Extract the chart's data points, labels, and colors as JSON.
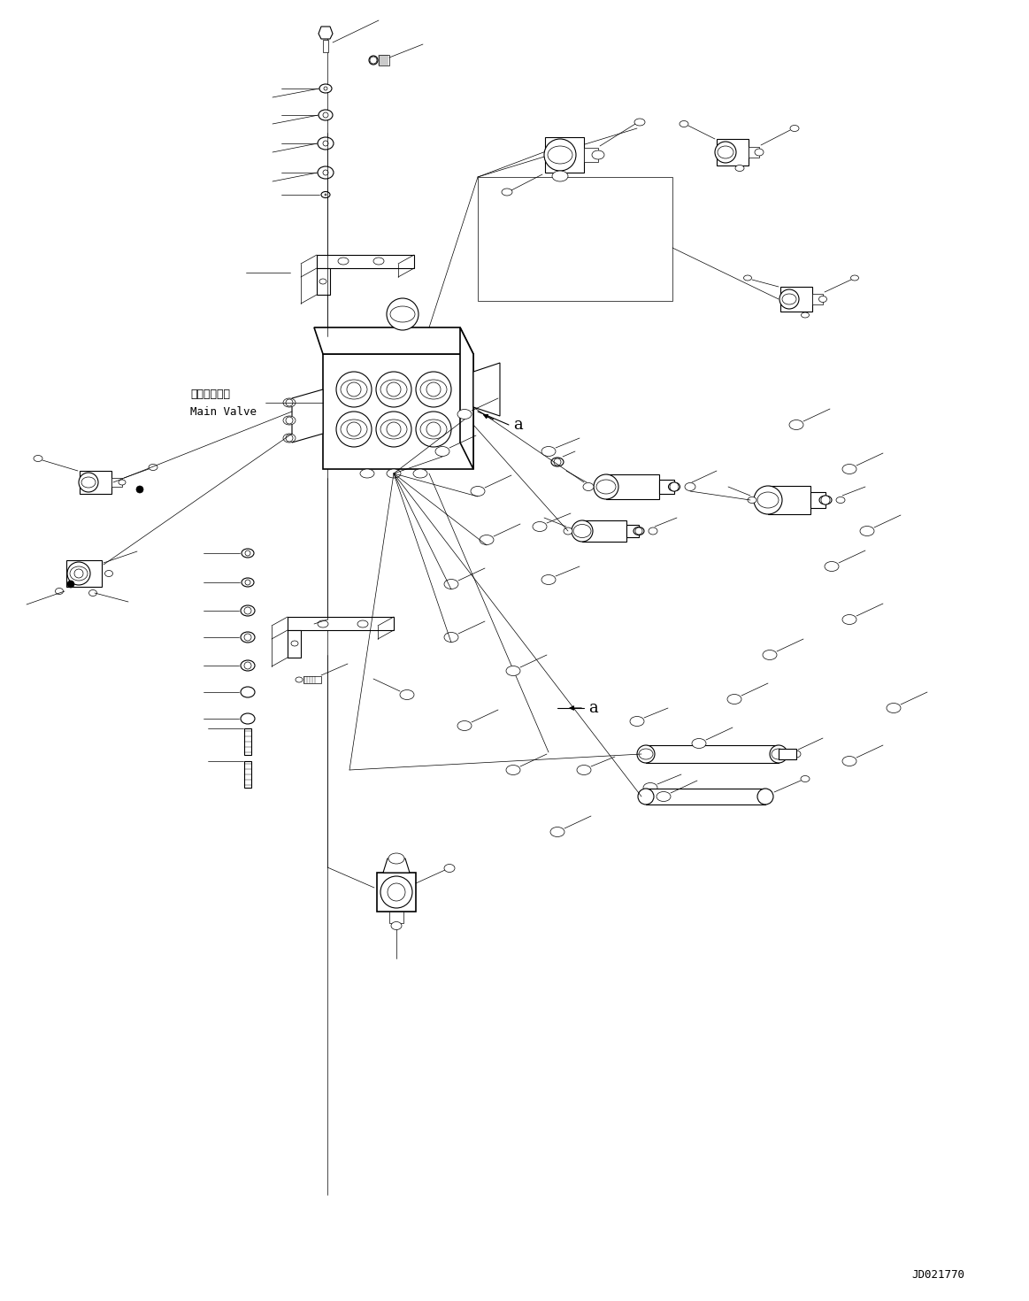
{
  "figure_width": 11.63,
  "figure_height": 14.7,
  "dpi": 100,
  "bg_color": "#ffffff",
  "line_color": "#000000",
  "watermark": "JD021770",
  "label_a1": "a",
  "label_a2": "a",
  "label_main_valve_jp": "メインバルブ",
  "label_main_valve_en": "Main Valve"
}
